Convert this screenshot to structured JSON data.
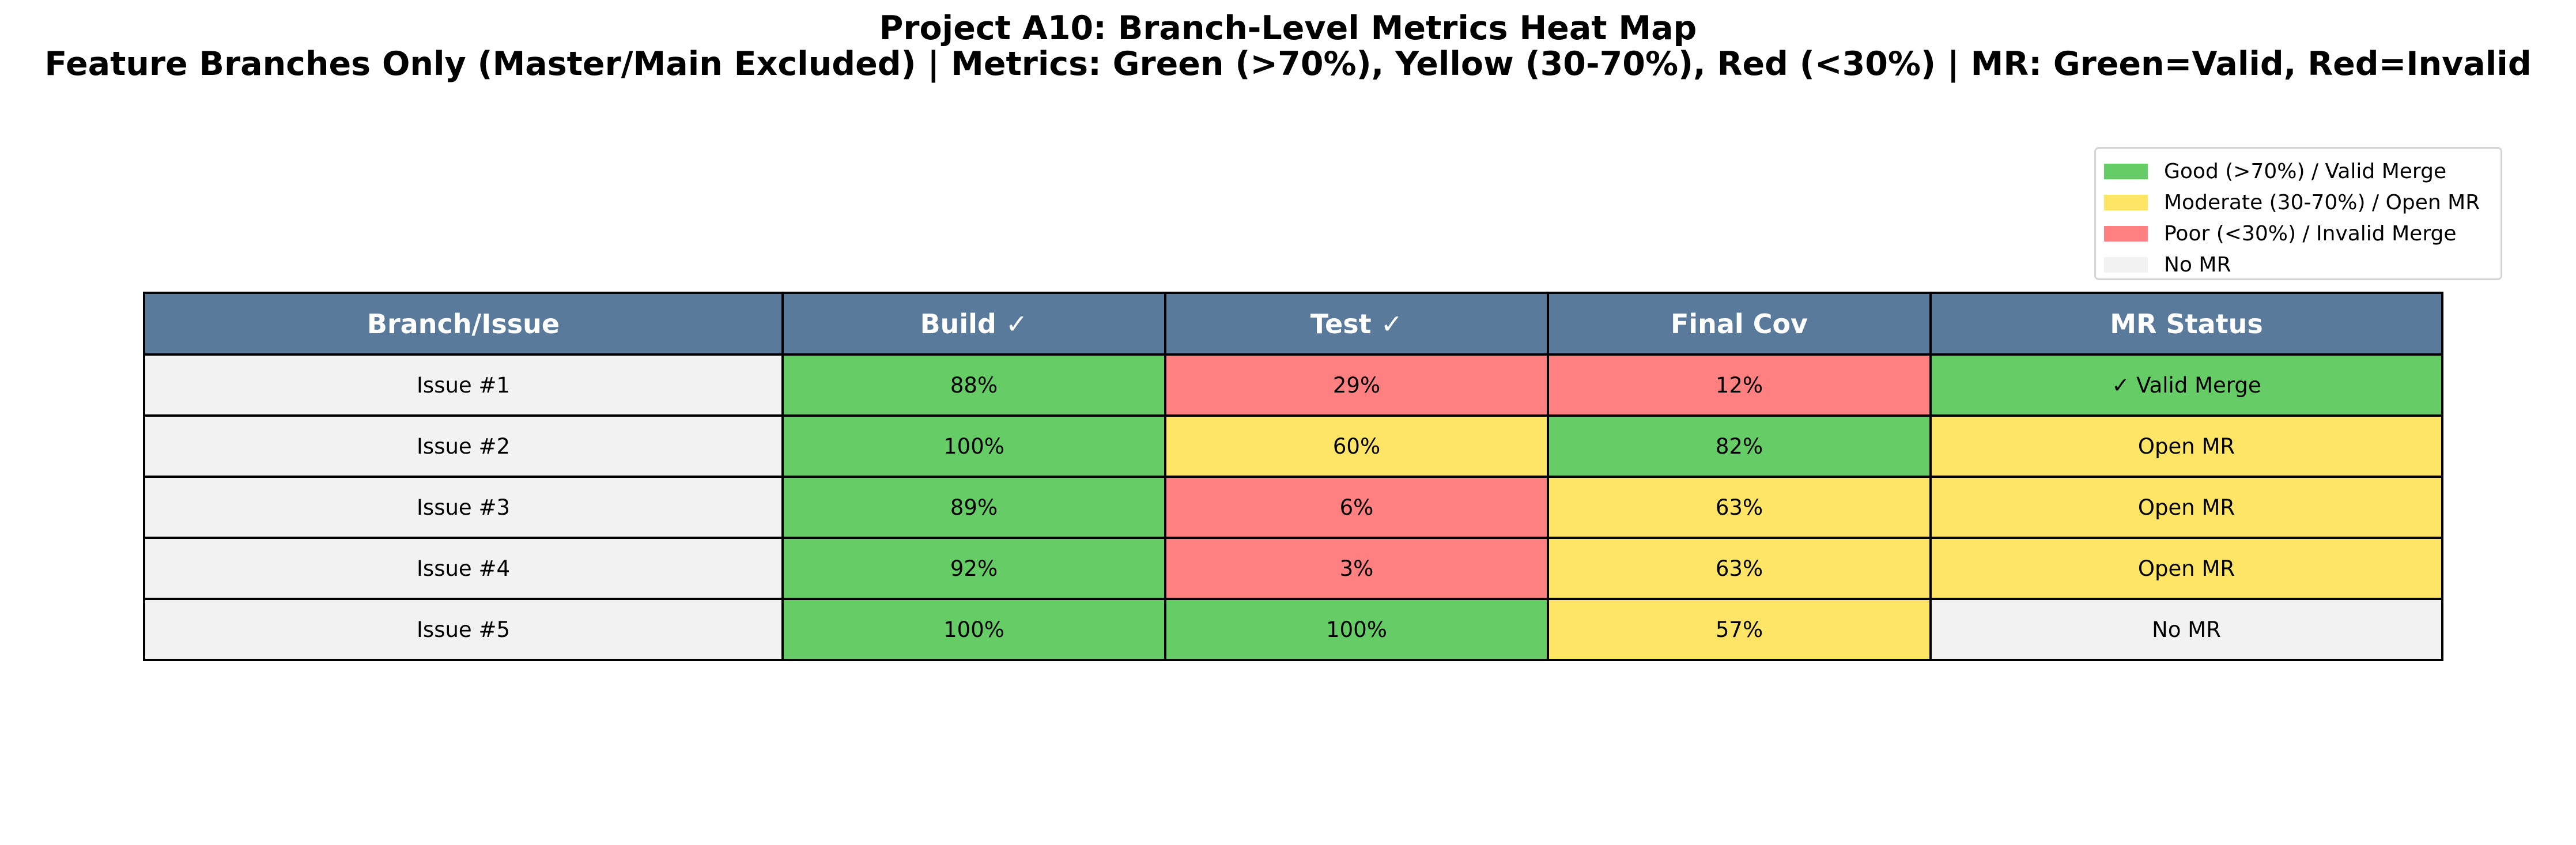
{
  "title": "Project A10: Branch-Level Metrics Heat Map",
  "subtitle": "Feature Branches Only (Master/Main Excluded) | Metrics: Green (>70%), Yellow (30-70%), Red (<30%) | MR: Green=Valid, Red=Invalid",
  "colors": {
    "header": "#5a7a9b",
    "good": "#66cc66",
    "moderate": "#ffe566",
    "poor": "#ff8080",
    "none": "#f2f2f2"
  },
  "legend": [
    {
      "label": "Good (>70%) / Valid Merge",
      "color": "#66cc66"
    },
    {
      "label": "Moderate (30-70%) / Open MR",
      "color": "#ffe566"
    },
    {
      "label": "Poor (<30%) / Invalid Merge",
      "color": "#ff8080"
    },
    {
      "label": "No MR",
      "color": "#f2f2f2"
    }
  ],
  "chart_data": {
    "type": "table",
    "title": "Project A10: Branch-Level Metrics Heat Map",
    "subtitle": "Feature Branches Only (Master/Main Excluded) | Metrics: Green (>70%), Yellow (30-70%), Red (<30%) | MR: Green=Valid, Red=Invalid",
    "columns": [
      "Branch/Issue",
      "Build ✓",
      "Test ✓",
      "Final Cov",
      "MR Status"
    ],
    "rows": [
      {
        "branch": "Issue #1",
        "build": 88,
        "test": 29,
        "final_cov": 12,
        "mr_status": "✓ Valid Merge"
      },
      {
        "branch": "Issue #2",
        "build": 100,
        "test": 60,
        "final_cov": 82,
        "mr_status": "Open MR"
      },
      {
        "branch": "Issue #3",
        "build": 89,
        "test": 6,
        "final_cov": 63,
        "mr_status": "Open MR"
      },
      {
        "branch": "Issue #4",
        "build": 92,
        "test": 3,
        "final_cov": 63,
        "mr_status": "Open MR"
      },
      {
        "branch": "Issue #5",
        "build": 100,
        "test": 100,
        "final_cov": 57,
        "mr_status": "No MR"
      }
    ],
    "legend_position": "top-right"
  }
}
